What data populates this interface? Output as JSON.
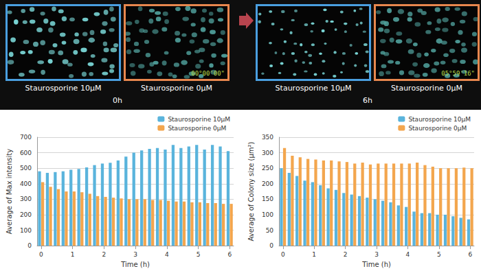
{
  "images": {
    "panels": [
      {
        "time": "0h",
        "frames": [
          {
            "label": "Staurosporine 10μM",
            "color": "#4a9fe0"
          },
          {
            "label": "Staurosporine 0μM",
            "color": "#e8874e",
            "timestamp": "00°00'00\""
          }
        ]
      },
      {
        "time": "6h",
        "frames": [
          {
            "label": "Staurosporine 10μM",
            "color": "#4a9fe0"
          },
          {
            "label": "Staurosporine 0μM",
            "color": "#e8874e",
            "timestamp": "05°59'16\""
          }
        ]
      }
    ]
  },
  "chart_data": [
    {
      "type": "bar",
      "ylabel": "Average of Max intensity",
      "xlabel": "Time (h)",
      "categories": [
        "0",
        null,
        null,
        null,
        "1",
        null,
        null,
        null,
        "2",
        null,
        null,
        null,
        "3",
        null,
        null,
        null,
        "4",
        null,
        null,
        null,
        "5",
        null,
        null,
        null,
        "6"
      ],
      "series": [
        {
          "name": "Staurosporine 10μM",
          "color": "#5ab4dc",
          "values": [
            480,
            470,
            475,
            480,
            490,
            495,
            505,
            520,
            530,
            535,
            550,
            575,
            600,
            615,
            625,
            630,
            620,
            650,
            630,
            640,
            650,
            620,
            650,
            640,
            610
          ]
        },
        {
          "name": "Staurosporine 0μM",
          "color": "#f3a64e",
          "values": [
            410,
            380,
            365,
            350,
            350,
            345,
            335,
            320,
            315,
            310,
            305,
            300,
            300,
            300,
            295,
            295,
            290,
            285,
            285,
            280,
            280,
            275,
            275,
            270,
            270
          ]
        }
      ],
      "ylim": [
        0,
        700
      ],
      "yticks": [
        0,
        100,
        200,
        300,
        400,
        500,
        600,
        700
      ],
      "grid": true,
      "legend": "upper right"
    },
    {
      "type": "bar",
      "ylabel": "Average of Colony size (μm²)",
      "xlabel": "Time (h)",
      "categories": [
        "0",
        null,
        null,
        null,
        "1",
        null,
        null,
        null,
        "2",
        null,
        null,
        null,
        "3",
        null,
        null,
        null,
        "4",
        null,
        null,
        null,
        "5",
        null,
        null,
        null,
        "6"
      ],
      "series": [
        {
          "name": "Staurosporine 10μM",
          "color": "#5ab4dc",
          "values": [
            250,
            235,
            225,
            210,
            205,
            195,
            185,
            180,
            170,
            165,
            160,
            155,
            150,
            145,
            140,
            130,
            125,
            110,
            105,
            105,
            100,
            100,
            95,
            90,
            85
          ]
        },
        {
          "name": "Staurosporine 0μM",
          "color": "#f3a64e",
          "values": [
            315,
            290,
            285,
            280,
            278,
            275,
            275,
            272,
            270,
            265,
            268,
            262,
            265,
            265,
            265,
            265,
            265,
            268,
            260,
            255,
            250,
            250,
            250,
            252,
            250
          ]
        }
      ],
      "ylim": [
        0,
        350
      ],
      "yticks": [
        0,
        50,
        100,
        150,
        200,
        250,
        300,
        350
      ],
      "grid": true,
      "legend": "upper right"
    }
  ]
}
